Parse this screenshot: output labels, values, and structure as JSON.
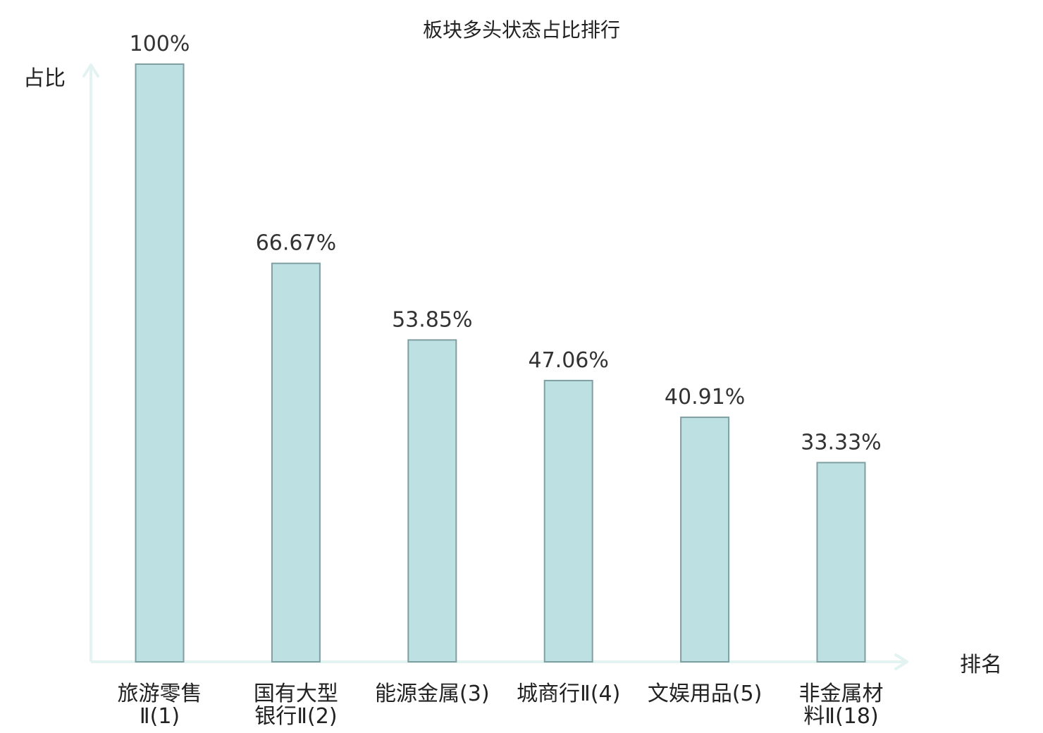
{
  "chart_data": {
    "type": "bar",
    "title": "板块多头状态占比排行",
    "ylabel": "占比",
    "xlabel": "排名",
    "ylim": [
      0,
      100
    ],
    "grid": false,
    "categories": [
      [
        "旅游零售",
        "Ⅱ(1)"
      ],
      [
        "国有大型",
        "银行Ⅱ(2)"
      ],
      [
        "能源金属(3)"
      ],
      [
        "城商行Ⅱ(4)"
      ],
      [
        "文娱用品(5)"
      ],
      [
        "非金属材",
        "料Ⅱ(18)"
      ]
    ],
    "values": [
      100,
      66.67,
      53.85,
      47.06,
      40.91,
      33.33
    ],
    "value_labels": [
      "100%",
      "66.67%",
      "53.85%",
      "47.06%",
      "40.91%",
      "33.33%"
    ],
    "highlight_index": 5
  },
  "colors": {
    "bar_fill": "#bde0e2",
    "bar_stroke": "#7f9fa3",
    "axis": "#e2f3f1",
    "highlight_text": "#e8201a",
    "text": "#222222"
  }
}
